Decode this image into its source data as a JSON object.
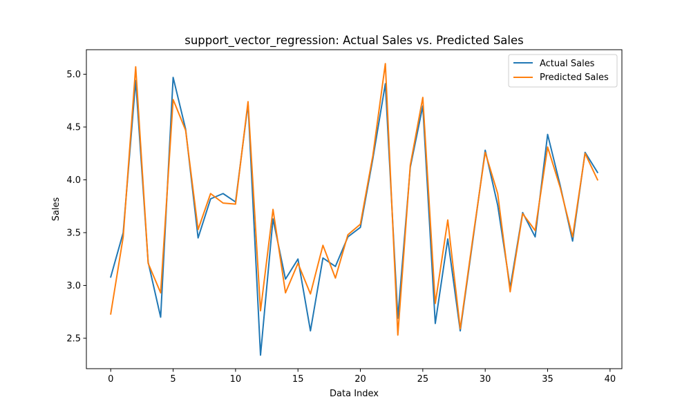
{
  "chart_data": {
    "type": "line",
    "title": "support_vector_regression: Actual Sales vs. Predicted Sales",
    "xlabel": "Data Index",
    "ylabel": "Sales",
    "xlim": [
      -1.95,
      40.95
    ],
    "ylim": [
      2.212,
      5.232
    ],
    "x_ticks": [
      0,
      5,
      10,
      15,
      20,
      25,
      30,
      35,
      40
    ],
    "y_ticks": [
      2.5,
      3.0,
      3.5,
      4.0,
      4.5,
      5.0
    ],
    "x_tick_labels": [
      "0",
      "5",
      "10",
      "15",
      "20",
      "25",
      "30",
      "35",
      "40"
    ],
    "y_tick_labels": [
      "2.5",
      "3.0",
      "3.5",
      "4.0",
      "4.5",
      "5.0"
    ],
    "grid": false,
    "legend_position": "top-right",
    "x": [
      0,
      1,
      2,
      3,
      4,
      5,
      6,
      7,
      8,
      9,
      10,
      11,
      12,
      13,
      14,
      15,
      16,
      17,
      18,
      19,
      20,
      21,
      22,
      23,
      24,
      25,
      26,
      27,
      28,
      29,
      30,
      31,
      32,
      33,
      34,
      35,
      36,
      37,
      38,
      39
    ],
    "series": [
      {
        "name": "Actual Sales",
        "color": "#1f77b4",
        "values": [
          3.08,
          3.5,
          4.94,
          3.22,
          2.7,
          4.97,
          4.48,
          3.45,
          3.82,
          3.87,
          3.79,
          4.72,
          2.34,
          3.63,
          3.06,
          3.25,
          2.57,
          3.26,
          3.18,
          3.46,
          3.55,
          4.2,
          4.91,
          2.69,
          4.12,
          4.7,
          2.64,
          3.44,
          2.57,
          3.42,
          4.28,
          3.76,
          2.98,
          3.69,
          3.46,
          4.43,
          3.95,
          3.42,
          4.26,
          4.07
        ]
      },
      {
        "name": "Predicted Sales",
        "color": "#ff7f0e",
        "values": [
          2.73,
          3.46,
          5.07,
          3.21,
          2.93,
          4.76,
          4.47,
          3.53,
          3.87,
          3.78,
          3.77,
          4.74,
          2.76,
          3.72,
          2.93,
          3.21,
          2.92,
          3.38,
          3.07,
          3.48,
          3.58,
          4.23,
          5.1,
          2.53,
          4.14,
          4.78,
          2.83,
          3.62,
          2.59,
          3.44,
          4.26,
          3.87,
          2.94,
          3.68,
          3.52,
          4.31,
          3.93,
          3.46,
          4.25,
          4.0
        ]
      }
    ]
  }
}
